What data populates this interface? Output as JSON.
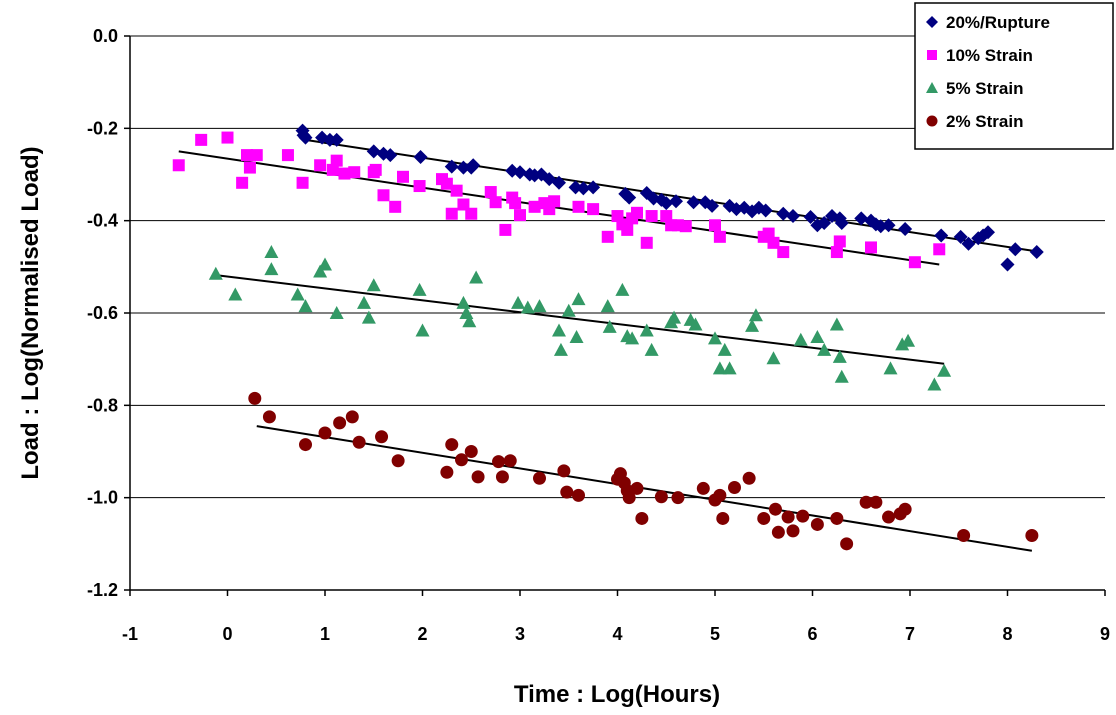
{
  "chart_data": {
    "type": "scatter",
    "title": "",
    "xlabel": "Time : Log(Hours)",
    "ylabel": "Load : Log(Normalised Load)",
    "xlim": [
      -1,
      9
    ],
    "ylim": [
      -1.2,
      0.0
    ],
    "xticks": [
      -1,
      0,
      1,
      2,
      3,
      4,
      5,
      6,
      7,
      8,
      9
    ],
    "yticks": [
      0.0,
      -0.2,
      -0.4,
      -0.6,
      -0.8,
      -1.0,
      -1.2
    ],
    "xtick_labels": [
      "-1",
      "0",
      "1",
      "2",
      "3",
      "4",
      "5",
      "6",
      "7",
      "8",
      "9"
    ],
    "ytick_labels": [
      "0.0",
      "-0.2",
      "-0.4",
      "-0.6",
      "-0.8",
      "-1.0",
      "-1.2"
    ],
    "grid": "horizontal",
    "legend_position": "top-right",
    "series": [
      {
        "name": "20%/Rupture",
        "marker": "diamond",
        "color": "#000080",
        "trend": [
          [
            0.8,
            -0.225
          ],
          [
            8.25,
            -0.465
          ]
        ],
        "points": [
          [
            0.77,
            -0.205
          ],
          [
            0.78,
            -0.215
          ],
          [
            0.8,
            -0.22
          ],
          [
            0.97,
            -0.22
          ],
          [
            1.05,
            -0.225
          ],
          [
            1.12,
            -0.225
          ],
          [
            1.5,
            -0.25
          ],
          [
            1.6,
            -0.255
          ],
          [
            1.67,
            -0.258
          ],
          [
            1.98,
            -0.262
          ],
          [
            2.3,
            -0.283
          ],
          [
            2.42,
            -0.285
          ],
          [
            2.5,
            -0.285
          ],
          [
            2.52,
            -0.28
          ],
          [
            2.92,
            -0.292
          ],
          [
            3.0,
            -0.295
          ],
          [
            3.1,
            -0.3
          ],
          [
            3.15,
            -0.302
          ],
          [
            3.22,
            -0.3
          ],
          [
            3.3,
            -0.31
          ],
          [
            3.4,
            -0.318
          ],
          [
            3.57,
            -0.328
          ],
          [
            3.65,
            -0.33
          ],
          [
            3.75,
            -0.328
          ],
          [
            4.08,
            -0.342
          ],
          [
            4.12,
            -0.35
          ],
          [
            4.3,
            -0.34
          ],
          [
            4.37,
            -0.352
          ],
          [
            4.45,
            -0.355
          ],
          [
            4.5,
            -0.362
          ],
          [
            4.6,
            -0.358
          ],
          [
            4.78,
            -0.36
          ],
          [
            4.9,
            -0.36
          ],
          [
            4.97,
            -0.368
          ],
          [
            5.15,
            -0.368
          ],
          [
            5.22,
            -0.375
          ],
          [
            5.3,
            -0.372
          ],
          [
            5.38,
            -0.38
          ],
          [
            5.45,
            -0.372
          ],
          [
            5.52,
            -0.378
          ],
          [
            5.7,
            -0.385
          ],
          [
            5.8,
            -0.39
          ],
          [
            5.98,
            -0.392
          ],
          [
            6.05,
            -0.41
          ],
          [
            6.12,
            -0.405
          ],
          [
            6.2,
            -0.39
          ],
          [
            6.28,
            -0.395
          ],
          [
            6.3,
            -0.405
          ],
          [
            6.5,
            -0.395
          ],
          [
            6.6,
            -0.4
          ],
          [
            6.65,
            -0.408
          ],
          [
            6.7,
            -0.412
          ],
          [
            6.78,
            -0.41
          ],
          [
            6.95,
            -0.418
          ],
          [
            7.32,
            -0.432
          ],
          [
            7.52,
            -0.435
          ],
          [
            7.6,
            -0.45
          ],
          [
            7.7,
            -0.438
          ],
          [
            7.75,
            -0.432
          ],
          [
            7.8,
            -0.425
          ],
          [
            8.0,
            -0.495
          ],
          [
            8.08,
            -0.462
          ],
          [
            8.3,
            -0.468
          ]
        ]
      },
      {
        "name": "10% Strain",
        "marker": "square",
        "color": "#FF00FF",
        "trend": [
          [
            -0.5,
            -0.25
          ],
          [
            7.3,
            -0.495
          ]
        ],
        "points": [
          [
            -0.5,
            -0.28
          ],
          [
            -0.27,
            -0.225
          ],
          [
            0.0,
            -0.22
          ],
          [
            0.15,
            -0.318
          ],
          [
            0.2,
            -0.258
          ],
          [
            0.23,
            -0.285
          ],
          [
            0.3,
            -0.258
          ],
          [
            0.62,
            -0.258
          ],
          [
            0.77,
            -0.318
          ],
          [
            0.95,
            -0.28
          ],
          [
            1.08,
            -0.29
          ],
          [
            1.12,
            -0.27
          ],
          [
            1.2,
            -0.298
          ],
          [
            1.3,
            -0.295
          ],
          [
            1.5,
            -0.295
          ],
          [
            1.52,
            -0.29
          ],
          [
            1.6,
            -0.345
          ],
          [
            1.72,
            -0.37
          ],
          [
            1.8,
            -0.305
          ],
          [
            1.97,
            -0.325
          ],
          [
            2.2,
            -0.31
          ],
          [
            2.25,
            -0.32
          ],
          [
            2.3,
            -0.385
          ],
          [
            2.35,
            -0.335
          ],
          [
            2.42,
            -0.365
          ],
          [
            2.5,
            -0.385
          ],
          [
            2.7,
            -0.338
          ],
          [
            2.75,
            -0.36
          ],
          [
            2.85,
            -0.42
          ],
          [
            2.92,
            -0.35
          ],
          [
            2.95,
            -0.362
          ],
          [
            3.0,
            -0.388
          ],
          [
            3.15,
            -0.37
          ],
          [
            3.25,
            -0.362
          ],
          [
            3.3,
            -0.375
          ],
          [
            3.35,
            -0.358
          ],
          [
            3.6,
            -0.37
          ],
          [
            3.75,
            -0.375
          ],
          [
            3.9,
            -0.435
          ],
          [
            4.0,
            -0.39
          ],
          [
            4.05,
            -0.408
          ],
          [
            4.1,
            -0.42
          ],
          [
            4.15,
            -0.395
          ],
          [
            4.2,
            -0.383
          ],
          [
            4.3,
            -0.448
          ],
          [
            4.35,
            -0.39
          ],
          [
            4.5,
            -0.39
          ],
          [
            4.55,
            -0.41
          ],
          [
            4.62,
            -0.41
          ],
          [
            4.7,
            -0.412
          ],
          [
            5.0,
            -0.41
          ],
          [
            5.05,
            -0.435
          ],
          [
            5.5,
            -0.435
          ],
          [
            5.55,
            -0.428
          ],
          [
            5.6,
            -0.448
          ],
          [
            5.7,
            -0.468
          ],
          [
            6.25,
            -0.468
          ],
          [
            6.28,
            -0.445
          ],
          [
            6.6,
            -0.458
          ],
          [
            7.05,
            -0.49
          ],
          [
            7.3,
            -0.462
          ]
        ]
      },
      {
        "name": "5% Strain",
        "marker": "triangle",
        "color": "#339966",
        "trend": [
          [
            -0.12,
            -0.518
          ],
          [
            7.35,
            -0.71
          ]
        ],
        "points": [
          [
            -0.12,
            -0.515
          ],
          [
            0.08,
            -0.56
          ],
          [
            0.45,
            -0.468
          ],
          [
            0.45,
            -0.505
          ],
          [
            0.72,
            -0.56
          ],
          [
            0.8,
            -0.585
          ],
          [
            0.95,
            -0.51
          ],
          [
            1.0,
            -0.495
          ],
          [
            1.12,
            -0.6
          ],
          [
            1.4,
            -0.578
          ],
          [
            1.45,
            -0.61
          ],
          [
            1.5,
            -0.54
          ],
          [
            1.97,
            -0.55
          ],
          [
            2.0,
            -0.638
          ],
          [
            2.42,
            -0.578
          ],
          [
            2.45,
            -0.6
          ],
          [
            2.48,
            -0.618
          ],
          [
            2.55,
            -0.523
          ],
          [
            2.98,
            -0.578
          ],
          [
            3.08,
            -0.588
          ],
          [
            3.2,
            -0.585
          ],
          [
            3.4,
            -0.638
          ],
          [
            3.42,
            -0.68
          ],
          [
            3.5,
            -0.595
          ],
          [
            3.58,
            -0.652
          ],
          [
            3.6,
            -0.57
          ],
          [
            3.9,
            -0.585
          ],
          [
            3.92,
            -0.63
          ],
          [
            4.05,
            -0.55
          ],
          [
            4.1,
            -0.65
          ],
          [
            4.15,
            -0.655
          ],
          [
            4.3,
            -0.638
          ],
          [
            4.35,
            -0.68
          ],
          [
            4.55,
            -0.62
          ],
          [
            4.58,
            -0.61
          ],
          [
            4.75,
            -0.615
          ],
          [
            4.8,
            -0.625
          ],
          [
            5.0,
            -0.655
          ],
          [
            5.05,
            -0.72
          ],
          [
            5.1,
            -0.68
          ],
          [
            5.15,
            -0.72
          ],
          [
            5.38,
            -0.628
          ],
          [
            5.42,
            -0.605
          ],
          [
            5.6,
            -0.698
          ],
          [
            5.88,
            -0.658
          ],
          [
            6.05,
            -0.652
          ],
          [
            6.12,
            -0.68
          ],
          [
            6.25,
            -0.625
          ],
          [
            6.28,
            -0.695
          ],
          [
            6.3,
            -0.738
          ],
          [
            6.8,
            -0.72
          ],
          [
            6.92,
            -0.668
          ],
          [
            6.98,
            -0.66
          ],
          [
            7.25,
            -0.755
          ],
          [
            7.35,
            -0.725
          ]
        ]
      },
      {
        "name": "2% Strain",
        "marker": "circle",
        "color": "#800000",
        "trend": [
          [
            0.3,
            -0.845
          ],
          [
            8.25,
            -1.115
          ]
        ],
        "points": [
          [
            0.28,
            -0.785
          ],
          [
            0.43,
            -0.825
          ],
          [
            0.8,
            -0.885
          ],
          [
            1.0,
            -0.86
          ],
          [
            1.15,
            -0.838
          ],
          [
            1.28,
            -0.825
          ],
          [
            1.35,
            -0.88
          ],
          [
            1.58,
            -0.868
          ],
          [
            1.75,
            -0.92
          ],
          [
            2.25,
            -0.945
          ],
          [
            2.3,
            -0.885
          ],
          [
            2.4,
            -0.918
          ],
          [
            2.5,
            -0.9
          ],
          [
            2.57,
            -0.955
          ],
          [
            2.78,
            -0.922
          ],
          [
            2.82,
            -0.955
          ],
          [
            2.9,
            -0.92
          ],
          [
            3.2,
            -0.958
          ],
          [
            3.45,
            -0.942
          ],
          [
            3.48,
            -0.988
          ],
          [
            3.6,
            -0.995
          ],
          [
            4.0,
            -0.96
          ],
          [
            4.03,
            -0.948
          ],
          [
            4.07,
            -0.968
          ],
          [
            4.1,
            -0.985
          ],
          [
            4.12,
            -1.0
          ],
          [
            4.2,
            -0.98
          ],
          [
            4.25,
            -1.045
          ],
          [
            4.45,
            -0.998
          ],
          [
            4.62,
            -1.0
          ],
          [
            4.88,
            -0.98
          ],
          [
            5.0,
            -1.005
          ],
          [
            5.05,
            -0.995
          ],
          [
            5.08,
            -1.045
          ],
          [
            5.2,
            -0.978
          ],
          [
            5.35,
            -0.958
          ],
          [
            5.5,
            -1.045
          ],
          [
            5.62,
            -1.025
          ],
          [
            5.65,
            -1.075
          ],
          [
            5.75,
            -1.042
          ],
          [
            5.8,
            -1.072
          ],
          [
            5.9,
            -1.04
          ],
          [
            6.05,
            -1.058
          ],
          [
            6.25,
            -1.045
          ],
          [
            6.35,
            -1.1
          ],
          [
            6.55,
            -1.01
          ],
          [
            6.65,
            -1.01
          ],
          [
            6.78,
            -1.042
          ],
          [
            6.9,
            -1.035
          ],
          [
            6.95,
            -1.025
          ],
          [
            7.55,
            -1.082
          ],
          [
            8.25,
            -1.082
          ]
        ]
      }
    ]
  }
}
